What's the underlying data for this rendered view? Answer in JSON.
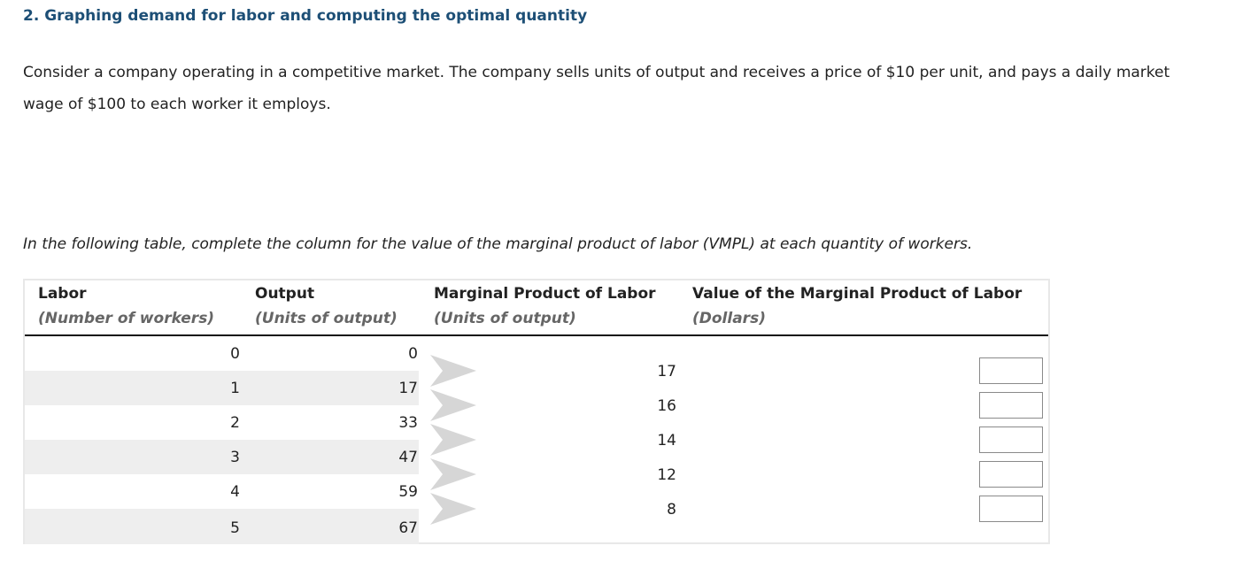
{
  "question": {
    "title": "2. Graphing demand for labor and computing the optimal quantity",
    "intro": "Consider a company operating in a competitive market. The company sells units of output and receives a price of $10 per unit, and pays a daily market wage of $100 to each worker it employs.",
    "instruction": "In the following table, complete the column for the value of the marginal product of labor (VMPL) at each quantity of workers."
  },
  "table": {
    "headers": [
      {
        "label": "Labor",
        "sub": "(Number of workers)"
      },
      {
        "label": "Output",
        "sub": "(Units of output)"
      },
      {
        "label": "Marginal Product of Labor",
        "sub": "(Units of output)"
      },
      {
        "label": "Value of the Marginal Product of Labor",
        "sub": "(Dollars)"
      }
    ],
    "rows": [
      {
        "labor": "0",
        "output": "0"
      },
      {
        "labor": "1",
        "output": "17"
      },
      {
        "labor": "2",
        "output": "33"
      },
      {
        "labor": "3",
        "output": "47"
      },
      {
        "labor": "4",
        "output": "59"
      },
      {
        "labor": "5",
        "output": "67"
      }
    ],
    "mpl": [
      "17",
      "16",
      "14",
      "12",
      "8"
    ],
    "vmpl_inputs": [
      "",
      "",
      "",
      "",
      ""
    ]
  },
  "colors": {
    "title": "#1d4f76",
    "row_shade": "#eeeeee",
    "chevron": "#d6d6d6",
    "box_border": "#8a8a8a"
  }
}
